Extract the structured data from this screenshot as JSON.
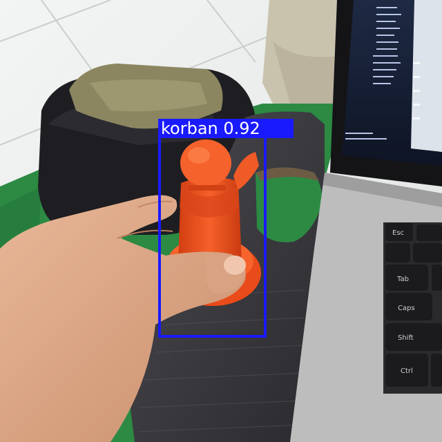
{
  "detections": [
    {
      "class": "korban",
      "confidence": "0.92",
      "color": "#1a1aff"
    }
  ],
  "colors": {
    "figure": "#f0501e",
    "laptop_body": "#bdbdbd",
    "floor": "#e9ecea",
    "board": "#3a3a3e",
    "mat": "#2c8a43"
  }
}
